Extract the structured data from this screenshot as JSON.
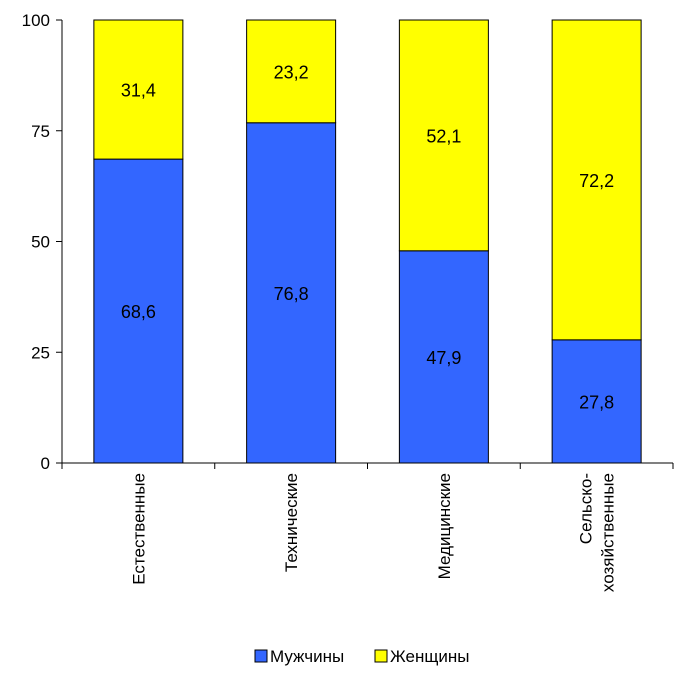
{
  "chart_data": {
    "type": "bar",
    "stacked": true,
    "categories": [
      [
        "Естественные"
      ],
      [
        "Технические"
      ],
      [
        "Медицинские"
      ],
      [
        "Сельско-",
        "хозяйственные"
      ]
    ],
    "series": [
      {
        "name": "Мужчины",
        "color": "#3366ff",
        "values": [
          68.6,
          76.8,
          47.9,
          27.8
        ],
        "labels": [
          "68,6",
          "76,8",
          "47,9",
          "27,8"
        ]
      },
      {
        "name": "Женщины",
        "color": "#ffff00",
        "values": [
          31.4,
          23.2,
          52.1,
          72.2
        ],
        "labels": [
          "31,4",
          "23,2",
          "52,1",
          "72,2"
        ]
      }
    ],
    "ylim": [
      0,
      100
    ],
    "yticks": [
      0,
      25,
      50,
      75,
      100
    ],
    "grid": false,
    "legend_position": "bottom"
  }
}
